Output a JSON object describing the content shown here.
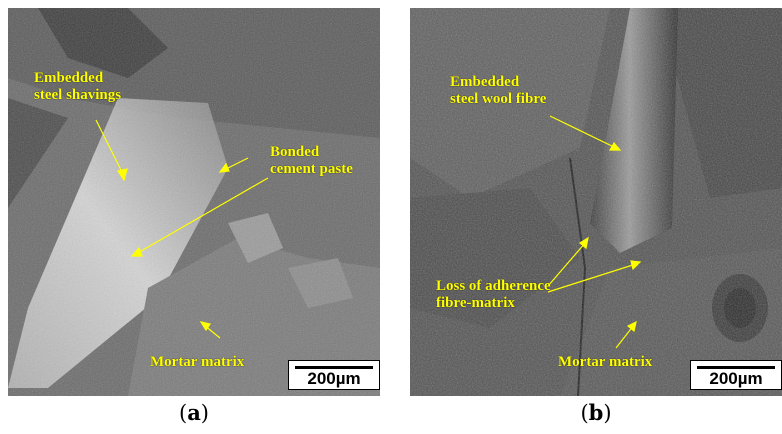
{
  "panel_a": {
    "labels": {
      "shavings": "Embedded\nsteel shavings",
      "paste": "Bonded\ncement paste",
      "mortar": "Mortar matrix"
    },
    "scale": "200µm",
    "caption": "a"
  },
  "panel_b": {
    "labels": {
      "fibre": "Embedded\nsteel wool fibre",
      "loss": "Loss of adherence\nfibre-matrix",
      "mortar": "Mortar matrix"
    },
    "scale": "200µm",
    "caption": "b"
  },
  "colors": {
    "annotation": "#ffff00",
    "background": "#ffffff"
  }
}
